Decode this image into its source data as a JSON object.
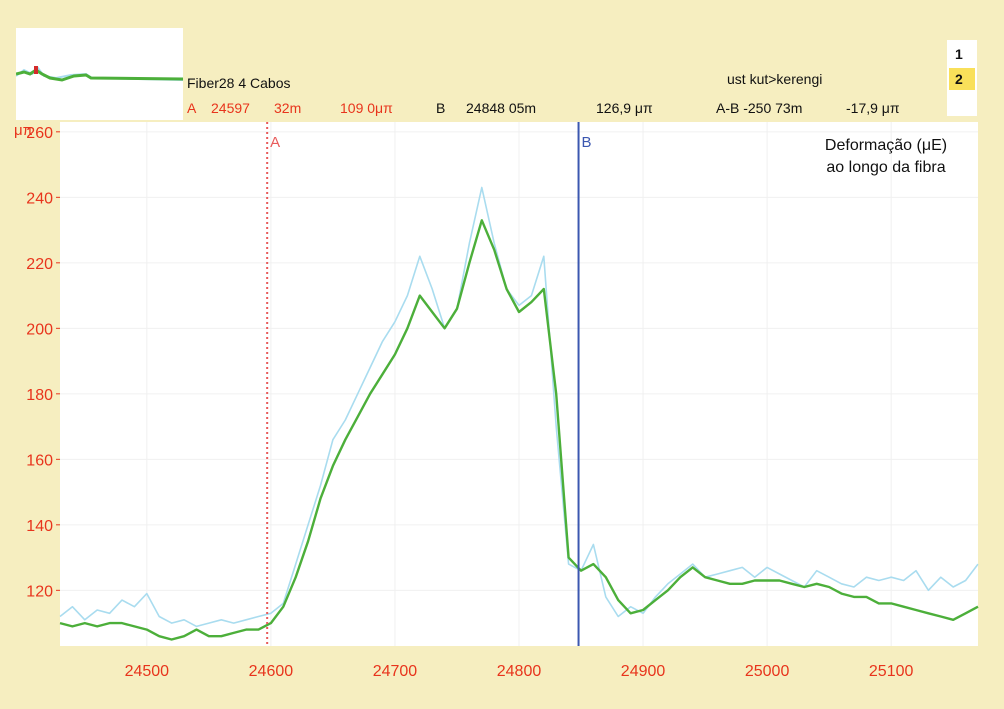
{
  "header": {
    "trace_name": "Fiber28 4 Cabos",
    "right_note": "ust kut>kerengi",
    "cursor_a": {
      "label": "A",
      "position": "24597",
      "distance": "32m",
      "value": "109 0μπ"
    },
    "cursor_b": {
      "label": "B",
      "position": "24848 05m",
      "value": "126,9 μπ"
    },
    "cursor_ab": {
      "label": "A-B -250 73m",
      "value": "-17,9 μπ"
    }
  },
  "tabs": [
    {
      "label": "1",
      "active": false
    },
    {
      "label": "2",
      "active": true
    }
  ],
  "colors": {
    "accent_red": "#e8341c",
    "series_raw": "#a9dcef",
    "series_smooth": "#4caf3a",
    "cursor_a": "#e85a5a",
    "cursor_b": "#3b57b0",
    "background": "#f6eec0"
  },
  "chart_data": {
    "type": "line",
    "ylabel": "μπ",
    "title": "Deformação (μE)\nao longo da fibra",
    "xlim": [
      24430,
      25170
    ],
    "ylim": [
      103,
      263
    ],
    "x_ticks": [
      24500,
      24600,
      24700,
      24800,
      24900,
      25000,
      25100
    ],
    "y_ticks": [
      120,
      140,
      160,
      180,
      200,
      220,
      240,
      260
    ],
    "grid": true,
    "cursors": [
      {
        "label": "A",
        "x": 24597,
        "style": "dotted"
      },
      {
        "label": "B",
        "x": 24848,
        "style": "solid"
      }
    ],
    "series": [
      {
        "x": [
          24430,
          24440,
          24450,
          24460,
          24470,
          24480,
          24490,
          24500,
          24510,
          24520,
          24530,
          24540,
          24550,
          24560,
          24570,
          24580,
          24590,
          24600,
          24610,
          24620,
          24630,
          24640,
          24650,
          24660,
          24670,
          24680,
          24690,
          24700,
          24710,
          24720,
          24730,
          24740,
          24750,
          24760,
          24770,
          24780,
          24790,
          24800,
          24810,
          24820,
          24830,
          24840,
          24850,
          24860,
          24870,
          24880,
          24890,
          24900,
          24910,
          24920,
          24930,
          24940,
          24950,
          24960,
          24970,
          24980,
          24990,
          25000,
          25010,
          25020,
          25030,
          25040,
          25050,
          25060,
          25070,
          25080,
          25090,
          25100,
          25110,
          25120,
          25130,
          25140,
          25150,
          25160,
          25170
        ],
        "values": [
          112,
          115,
          111,
          114,
          113,
          117,
          115,
          119,
          112,
          110,
          111,
          109,
          110,
          111,
          110,
          111,
          112,
          113,
          116,
          128,
          140,
          152,
          166,
          172,
          180,
          188,
          196,
          202,
          210,
          222,
          212,
          200,
          206,
          226,
          243,
          226,
          212,
          207,
          210,
          222,
          170,
          128,
          126,
          134,
          118,
          112,
          115,
          113,
          118,
          122,
          125,
          128,
          124,
          125,
          126,
          127,
          124,
          127,
          125,
          123,
          121,
          126,
          124,
          122,
          121,
          124,
          123,
          124,
          123,
          126,
          120,
          124,
          121,
          123,
          128
        ]
      },
      {
        "x": [
          24430,
          24440,
          24450,
          24460,
          24470,
          24480,
          24490,
          24500,
          24510,
          24520,
          24530,
          24540,
          24550,
          24560,
          24570,
          24580,
          24590,
          24600,
          24610,
          24620,
          24630,
          24640,
          24650,
          24660,
          24670,
          24680,
          24690,
          24700,
          24710,
          24720,
          24730,
          24740,
          24750,
          24760,
          24770,
          24780,
          24790,
          24800,
          24810,
          24820,
          24830,
          24840,
          24850,
          24860,
          24870,
          24880,
          24890,
          24900,
          24910,
          24920,
          24930,
          24940,
          24950,
          24960,
          24970,
          24980,
          24990,
          25000,
          25010,
          25020,
          25030,
          25040,
          25050,
          25060,
          25070,
          25080,
          25090,
          25100,
          25110,
          25120,
          25130,
          25140,
          25150,
          25160,
          25170
        ],
        "values": [
          110,
          109,
          110,
          109,
          110,
          110,
          109,
          108,
          106,
          105,
          106,
          108,
          106,
          106,
          107,
          108,
          108,
          110,
          115,
          124,
          135,
          148,
          158,
          166,
          173,
          180,
          186,
          192,
          200,
          210,
          205,
          200,
          206,
          220,
          233,
          224,
          212,
          205,
          208,
          212,
          180,
          130,
          126,
          128,
          124,
          117,
          113,
          114,
          117,
          120,
          124,
          127,
          124,
          123,
          122,
          122,
          123,
          123,
          123,
          122,
          121,
          122,
          121,
          119,
          118,
          118,
          116,
          116,
          115,
          114,
          113,
          112,
          111,
          113,
          115
        ]
      }
    ]
  }
}
